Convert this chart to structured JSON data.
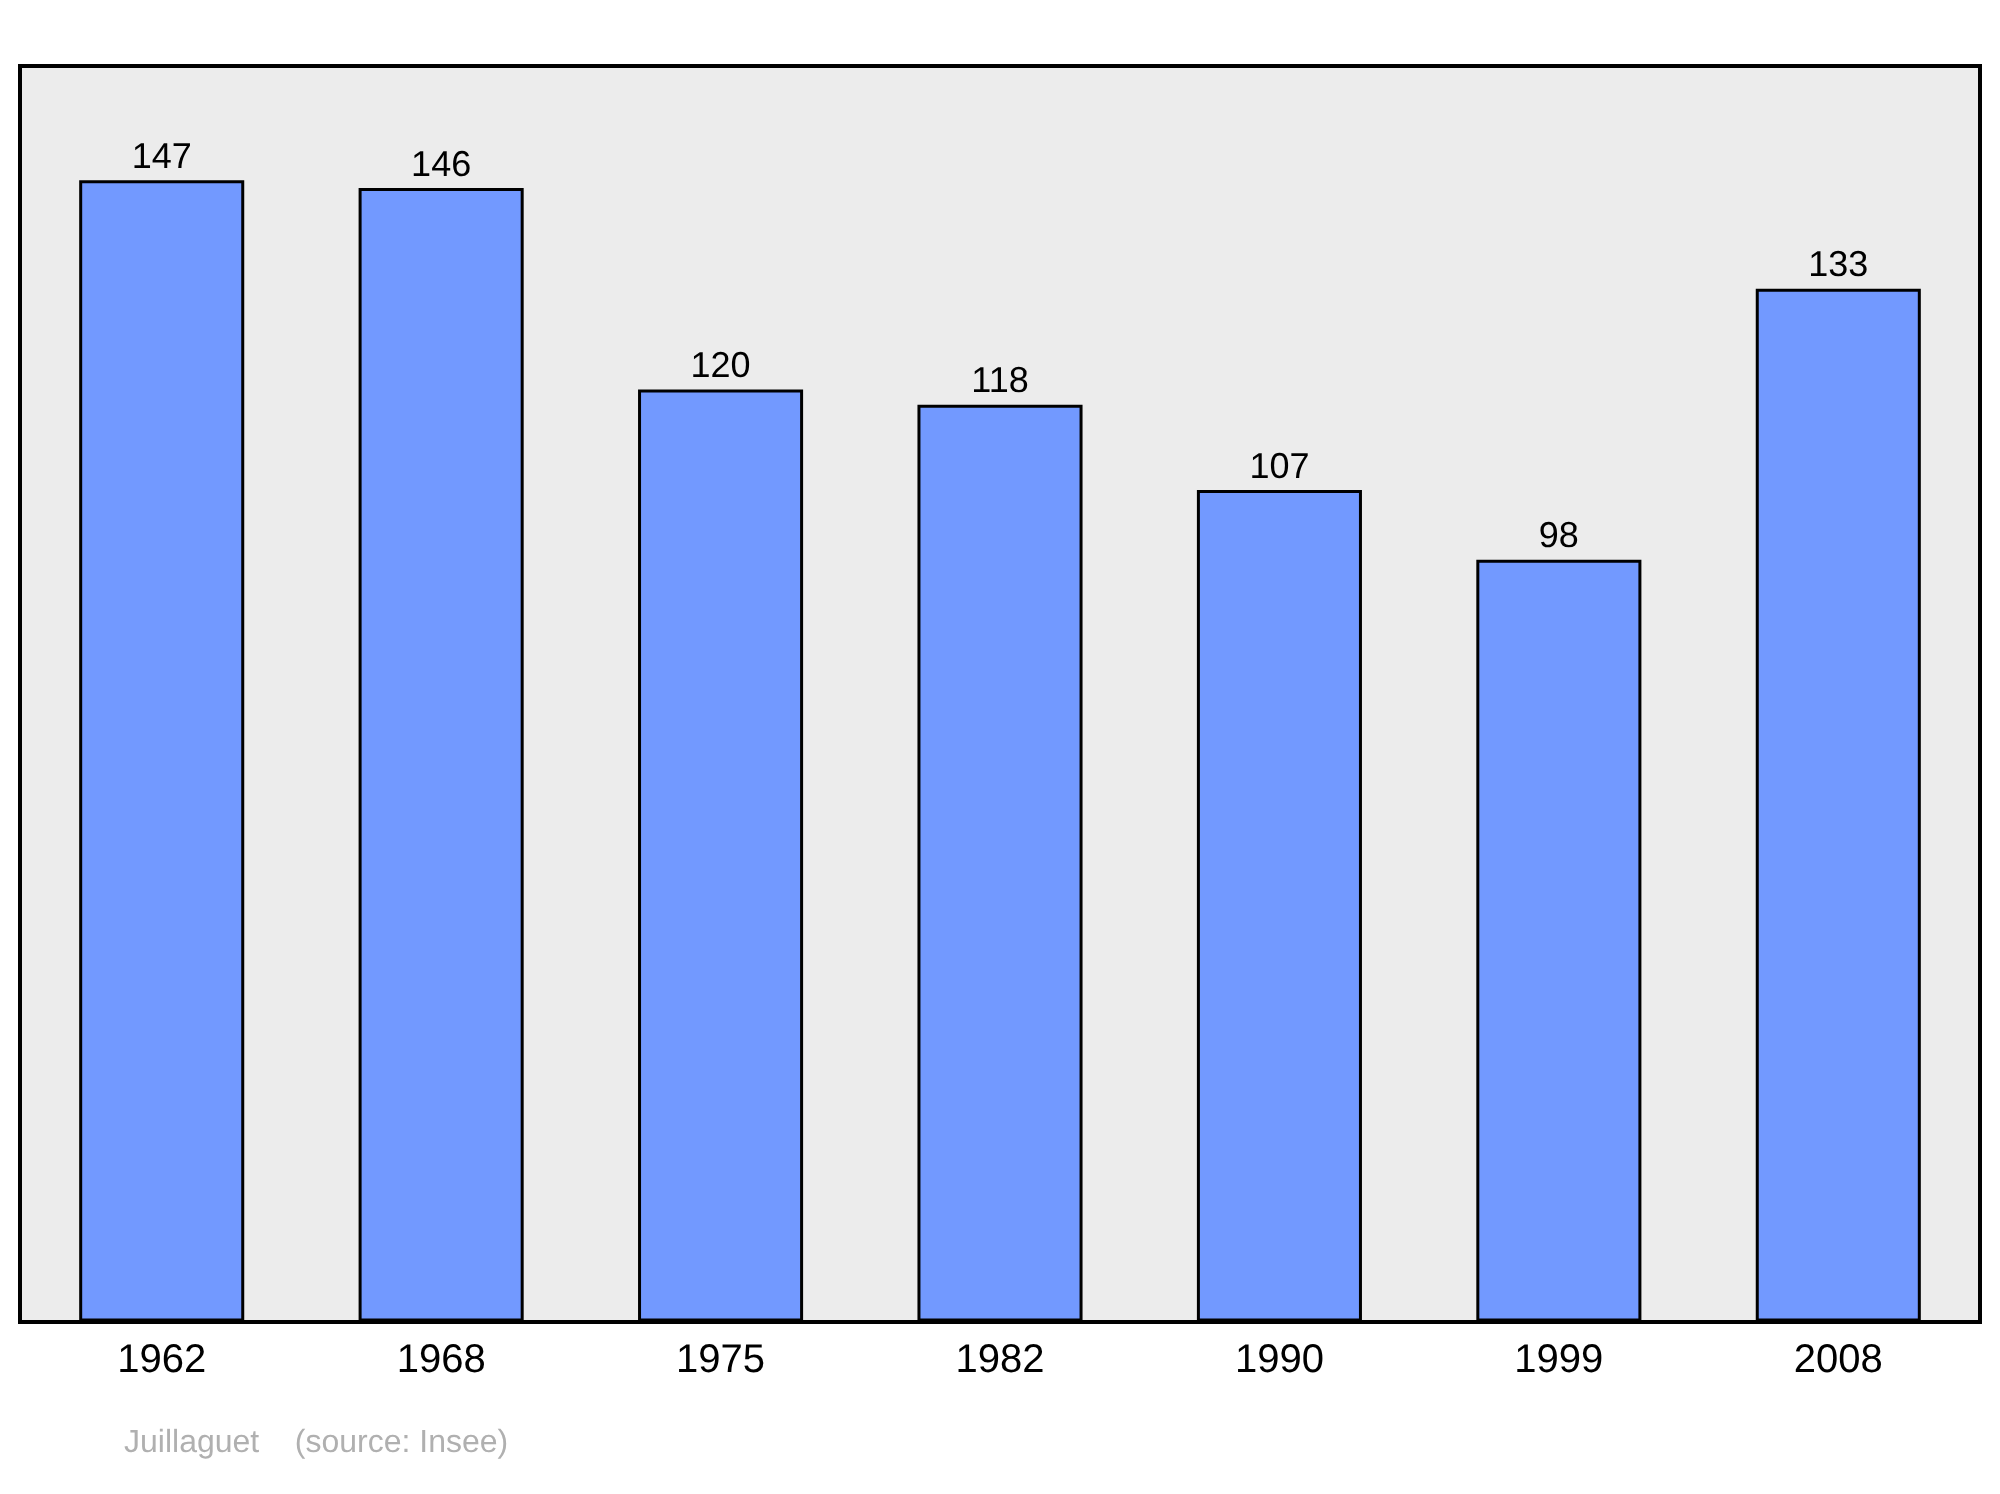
{
  "chart_data": {
    "type": "bar",
    "categories": [
      "1962",
      "1968",
      "1975",
      "1982",
      "1990",
      "1999",
      "2008"
    ],
    "values": [
      147,
      146,
      120,
      118,
      107,
      98,
      133
    ],
    "color": "#7299ff",
    "data_labels": true,
    "annotations": [
      "Juillaguet    (source: Insee)"
    ]
  }
}
